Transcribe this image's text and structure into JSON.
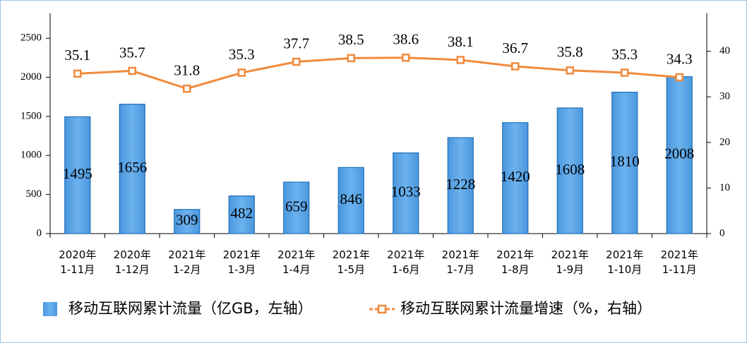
{
  "chart_data": {
    "type": "bar-line",
    "categories": [
      "2020年\n1-11月",
      "2020年\n1-12月",
      "2021年\n1-2月",
      "2021年\n1-3月",
      "2021年\n1-4月",
      "2021年\n1-5月",
      "2021年\n1-6月",
      "2021年\n1-7月",
      "2021年\n1-8月",
      "2021年\n1-9月",
      "2021年\n1-10月",
      "2021年\n1-11月"
    ],
    "series": [
      {
        "name": "移动互联网累计流量（亿GB，左轴）",
        "type": "bar",
        "color": "#5ba5e6",
        "values": [
          1495,
          1656,
          309,
          482,
          659,
          846,
          1033,
          1228,
          1420,
          1608,
          1810,
          2008
        ]
      },
      {
        "name": "移动互联网累计流量增速（%，右轴）",
        "type": "line",
        "axis": "y2",
        "color": "#f08a3c",
        "values": [
          35.1,
          35.7,
          31.8,
          35.3,
          37.7,
          38.5,
          38.6,
          38.1,
          36.7,
          35.8,
          35.3,
          34.3
        ]
      }
    ],
    "ylim": [
      0,
      2800
    ],
    "yticks": [
      0,
      500,
      1000,
      1500,
      2000,
      2500
    ],
    "y2lim": [
      0,
      48
    ],
    "y2ticks": [
      0,
      10,
      20,
      30,
      40
    ]
  }
}
